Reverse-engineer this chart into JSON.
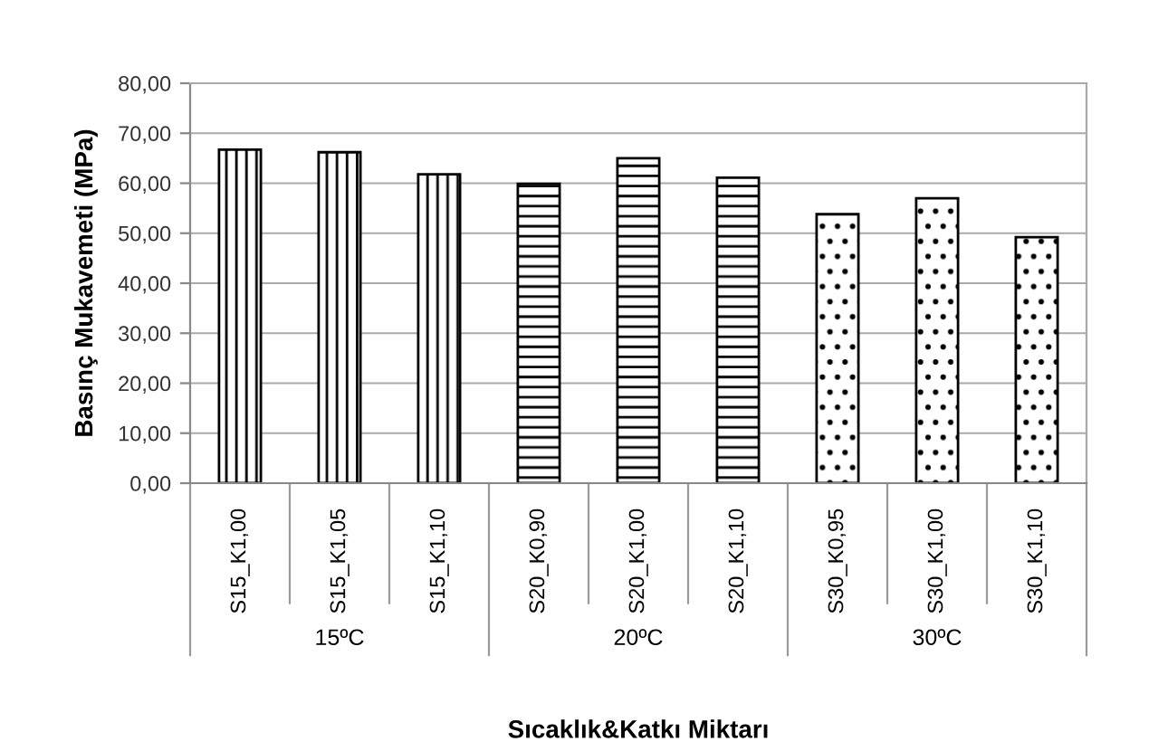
{
  "chart_data": {
    "type": "bar",
    "xlabel": "Sıcaklık&Katkı Miktarı",
    "ylabel": "Basınç Mukavemeti (MPa)",
    "categories": [
      "S15_K1,00",
      "S15_K1,05",
      "S15_K1,10",
      "S20_K0,90",
      "S20_K1,00",
      "S20_K1,10",
      "S30_K0,95",
      "S30_K1,00",
      "S30_K1,10"
    ],
    "series": [
      {
        "color": "#000000",
        "values": [
          66.7,
          66.2,
          61.8,
          null,
          null,
          null,
          null,
          null,
          null
        ]
      },
      {
        "color": "#000000",
        "values": [
          null,
          null,
          null,
          59.9,
          65.0,
          61.1,
          null,
          null,
          null
        ]
      },
      {
        "color": "#000000",
        "values": [
          null,
          null,
          null,
          null,
          null,
          null,
          53.8,
          57.0,
          49.2
        ]
      }
    ],
    "ylim": [
      0,
      80
    ],
    "yticks": [
      {
        "value": 0,
        "label": "0,00"
      },
      {
        "value": 10,
        "label": "10,00"
      },
      {
        "value": 20,
        "label": "20,00"
      },
      {
        "value": 30,
        "label": "30,00"
      },
      {
        "value": 40,
        "label": "40,00"
      },
      {
        "value": 50,
        "label": "50,00"
      },
      {
        "value": 60,
        "label": "60,00"
      },
      {
        "value": 70,
        "label": "70,00"
      },
      {
        "value": 80,
        "label": "80,00"
      }
    ],
    "grid": "y",
    "annotations": [
      "15ºC",
      "20ºC",
      "30ºC"
    ]
  }
}
